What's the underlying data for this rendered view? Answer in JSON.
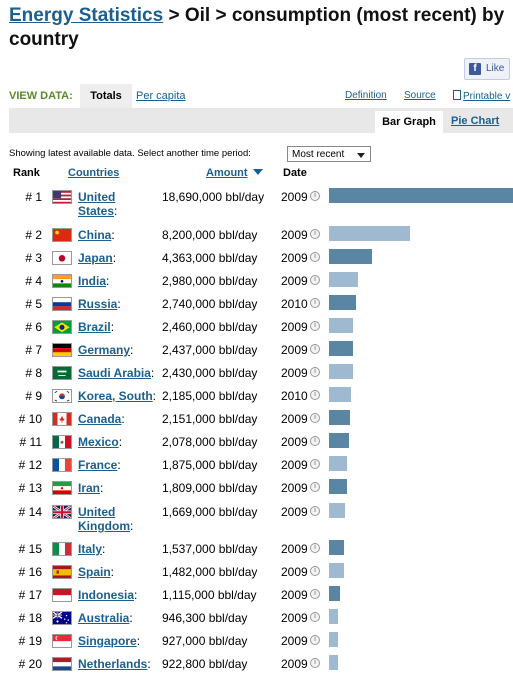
{
  "header": {
    "crumb_link": "Energy Statistics",
    "crumb_rest": " > Oil > consumption (most recent) by country"
  },
  "like": {
    "label": "Like"
  },
  "view": {
    "label": "VIEW DATA:",
    "tab_totals": "Totals",
    "tab_percapita": "Per capita",
    "definition": "Definition",
    "source": "Source",
    "printable": "Printable v"
  },
  "graph_tabs": {
    "bar": "Bar Graph",
    "pie": "Pie Chart"
  },
  "period": {
    "text": "Showing latest available data. Select another time period:",
    "selected": "Most recent"
  },
  "columns": {
    "rank": "Rank",
    "countries": "Countries",
    "amount": "Amount",
    "date": "Date"
  },
  "colors": {
    "bar_dark": "#5a86a4",
    "bar_light": "#9fbad0",
    "link": "#1a5f8f"
  },
  "rows": [
    {
      "rank": "# 1",
      "name": "United States",
      "amount": "18,690,000 bbl/day",
      "date": "2009",
      "value": 18690000,
      "flag": "us"
    },
    {
      "rank": "# 2",
      "name": "China",
      "amount": "8,200,000 bbl/day",
      "date": "2009",
      "value": 8200000,
      "flag": "cn"
    },
    {
      "rank": "# 3",
      "name": "Japan",
      "amount": "4,363,000 bbl/day",
      "date": "2009",
      "value": 4363000,
      "flag": "jp"
    },
    {
      "rank": "# 4",
      "name": "India",
      "amount": "2,980,000 bbl/day",
      "date": "2009",
      "value": 2980000,
      "flag": "in"
    },
    {
      "rank": "# 5",
      "name": "Russia",
      "amount": "2,740,000 bbl/day",
      "date": "2010",
      "value": 2740000,
      "flag": "ru"
    },
    {
      "rank": "# 6",
      "name": "Brazil",
      "amount": "2,460,000 bbl/day",
      "date": "2009",
      "value": 2460000,
      "flag": "br"
    },
    {
      "rank": "# 7",
      "name": "Germany",
      "amount": "2,437,000 bbl/day",
      "date": "2009",
      "value": 2437000,
      "flag": "de"
    },
    {
      "rank": "# 8",
      "name": "Saudi Arabia",
      "amount": "2,430,000 bbl/day",
      "date": "2009",
      "value": 2430000,
      "flag": "sa"
    },
    {
      "rank": "# 9",
      "name": "Korea, South",
      "amount": "2,185,000 bbl/day",
      "date": "2010",
      "value": 2185000,
      "flag": "kr"
    },
    {
      "rank": "# 10",
      "name": "Canada",
      "amount": "2,151,000 bbl/day",
      "date": "2009",
      "value": 2151000,
      "flag": "ca"
    },
    {
      "rank": "# 11",
      "name": "Mexico",
      "amount": "2,078,000 bbl/day",
      "date": "2009",
      "value": 2078000,
      "flag": "mx"
    },
    {
      "rank": "# 12",
      "name": "France",
      "amount": "1,875,000 bbl/day",
      "date": "2009",
      "value": 1875000,
      "flag": "fr"
    },
    {
      "rank": "# 13",
      "name": "Iran",
      "amount": "1,809,000 bbl/day",
      "date": "2009",
      "value": 1809000,
      "flag": "ir"
    },
    {
      "rank": "# 14",
      "name": "United Kingdom",
      "amount": "1,669,000 bbl/day",
      "date": "2009",
      "value": 1669000,
      "flag": "gb"
    },
    {
      "rank": "# 15",
      "name": "Italy",
      "amount": "1,537,000 bbl/day",
      "date": "2009",
      "value": 1537000,
      "flag": "it"
    },
    {
      "rank": "# 16",
      "name": "Spain",
      "amount": "1,482,000 bbl/day",
      "date": "2009",
      "value": 1482000,
      "flag": "es"
    },
    {
      "rank": "# 17",
      "name": "Indonesia",
      "amount": "1,115,000 bbl/day",
      "date": "2009",
      "value": 1115000,
      "flag": "id"
    },
    {
      "rank": "# 18",
      "name": "Australia",
      "amount": "946,300 bbl/day",
      "date": "2009",
      "value": 946300,
      "flag": "au"
    },
    {
      "rank": "# 19",
      "name": "Singapore",
      "amount": "927,000 bbl/day",
      "date": "2009",
      "value": 927000,
      "flag": "sg"
    },
    {
      "rank": "# 20",
      "name": "Netherlands",
      "amount": "922,800 bbl/day",
      "date": "2009",
      "value": 922800,
      "flag": "nl"
    }
  ]
}
